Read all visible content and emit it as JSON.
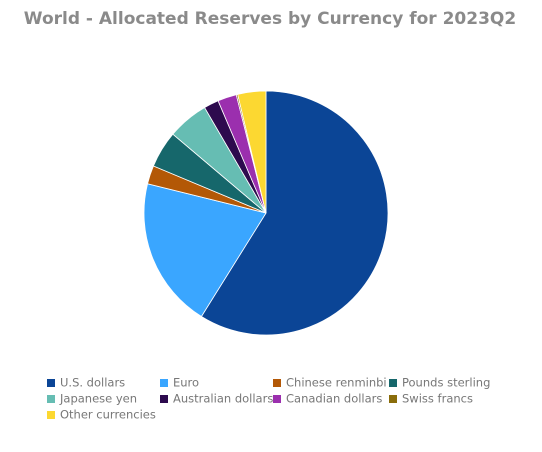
{
  "chart_data": {
    "type": "pie",
    "title": "World - Allocated Reserves by Currency for 2023Q2",
    "categories": [
      "U.S. dollars",
      "Euro",
      "Chinese renminbi",
      "Pounds sterling",
      "Japanese yen",
      "Australian dollars",
      "Canadian dollars",
      "Swiss francs",
      "Other currencies"
    ],
    "values": [
      58.88,
      19.97,
      2.45,
      4.88,
      5.43,
      1.97,
      2.5,
      0.19,
      3.73
    ],
    "colors": [
      "#0b4596",
      "#3aa6ff",
      "#b35806",
      "#16676b",
      "#66bdb3",
      "#2d0a4e",
      "#9b2fae",
      "#8a6d0b",
      "#fcd831"
    ],
    "legend": "bottom"
  }
}
